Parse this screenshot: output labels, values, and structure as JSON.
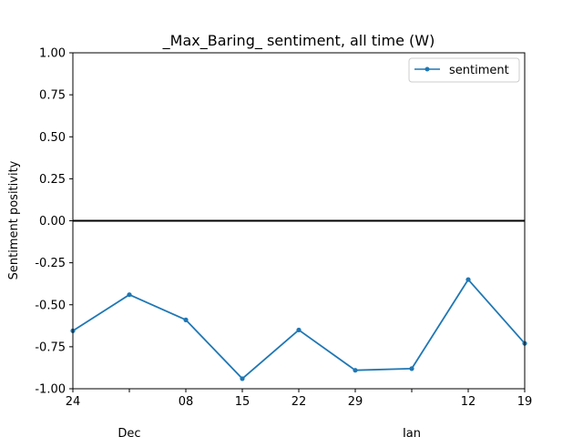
{
  "chart_data": {
    "type": "line",
    "title": "_Max_Baring_ sentiment, all time (W)",
    "xlabel": "",
    "ylabel": "Sentiment positivity",
    "x": [
      "2019-11-24",
      "2019-12-01",
      "2019-12-08",
      "2019-12-15",
      "2019-12-22",
      "2019-12-29",
      "2020-01-05",
      "2020-01-12",
      "2020-01-19"
    ],
    "xlim": [
      "2019-11-24",
      "2020-01-19"
    ],
    "ylim": [
      -1.0,
      1.0
    ],
    "x_ticks": [
      {
        "x": "2019-11-24",
        "label": "24"
      },
      {
        "x": "2019-12-01",
        "label": ""
      },
      {
        "x": "2019-12-08",
        "label": "08"
      },
      {
        "x": "2019-12-15",
        "label": "15"
      },
      {
        "x": "2019-12-22",
        "label": "22"
      },
      {
        "x": "2019-12-29",
        "label": "29"
      },
      {
        "x": "2020-01-05",
        "label": ""
      },
      {
        "x": "2020-01-12",
        "label": "12"
      },
      {
        "x": "2020-01-19",
        "label": "19"
      }
    ],
    "x_major_labels": [
      {
        "x": "2019-12-01",
        "label": "Dec"
      },
      {
        "x": "2020-01-05",
        "label": "Jan"
      }
    ],
    "y_ticks": [
      "-1.00",
      "-0.75",
      "-0.50",
      "-0.25",
      "0.00",
      "0.25",
      "0.50",
      "0.75",
      "1.00"
    ],
    "reference_line": 0.0,
    "series": [
      {
        "name": "sentiment",
        "color": "#1f77b4",
        "values": [
          -0.655,
          -0.44,
          -0.59,
          -0.94,
          -0.65,
          -0.89,
          -0.88,
          -0.35,
          -0.73
        ]
      }
    ],
    "legend": {
      "position": "top-right"
    },
    "grid": false
  }
}
